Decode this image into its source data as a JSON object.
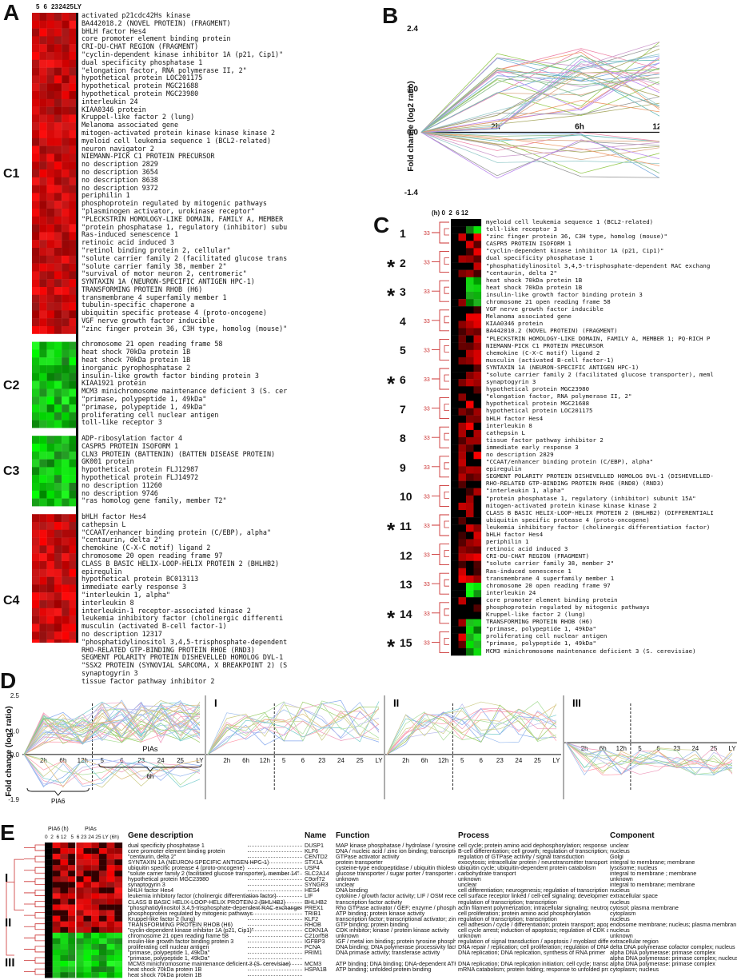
{
  "panels": {
    "a": "A",
    "b": "B",
    "c": "C",
    "d": "D",
    "e": "E"
  },
  "panelA": {
    "time_headers": [
      "5",
      "6",
      "23",
      "24",
      "25",
      "LY"
    ],
    "clusters": [
      {
        "label": "C1",
        "color": "red",
        "genes": [
          "activated p21cdc42Hs kinase",
          "BA442018.2 (NOVEL PROTEIN) (FRAGMENT)",
          "bHLH factor Hes4",
          "core promoter element binding protein",
          "CRI-DU-CHAT REGION (FRAGMENT)",
          "\"cyclin-dependent kinase inhibitor 1A (p21, Cip1)\"",
          "dual specificity phosphatase 1",
          "\"elongation factor, RNA polymerase II, 2\"",
          "hypothetical protein LOC201175",
          "hypothetical protein MGC21688",
          "hypothetical protein MGC23980",
          "interleukin 24",
          "KIAA0346 protein",
          "Kruppel-like factor 2 (lung)",
          "Melanoma associated gene",
          "mitogen-activated protein kinase kinase kinase 2",
          "myeloid cell leukemia sequence 1 (BCL2-related)",
          "neuron navigator 2",
          "NIEMANN-PICK C1 PROTEIN PRECURSOR",
          "no description 2829",
          "no description 3654",
          "no description 8638",
          "no description 9372",
          "periphilin 1",
          "phosphoprotein regulated by mitogenic pathways",
          "\"plasminogen activator, urokinase receptor\"",
          "\"PLECKSTRIN HOMOLOGY-LIKE DOMAIN, FAMILY A, MEMBER",
          "\"protein phosphatase 1, regulatory (inhibitor) subu",
          "Ras-induced senescence 1",
          "retinoic acid induced 3",
          "\"retinol binding protein 2, cellular\"",
          "\"solute carrier family 2 (facilitated glucose trans",
          "\"solute carrier family 38, member 2\"",
          "\"survival of motor neuron 2, centromeric\"",
          "SYNTAXIN 1A (NEURON-SPECIFIC ANTIGEN HPC-1)",
          "TRANSFORMING PROTEIN RHOB (H6)",
          "transmembrane 4 superfamily member 1",
          "tubulin-specific chaperone a",
          "ubiquitin specific protease 4 (proto-oncogene)",
          "VGF nerve growth factor inducible",
          "\"zinc finger protein 36, C3H type, homolog (mouse)\""
        ]
      },
      {
        "label": "C2",
        "color": "green",
        "genes": [
          "chromosome 21 open reading frame 58",
          "heat shock 70kDa protein 1B",
          "heat shock 70kDa protein 1B",
          "inorganic pyrophosphatase 2",
          "insulin-like growth factor binding protein 3",
          "KIAA1921 protein",
          "MCM3 minichromosome maintenance deficient 3 (S. cer",
          "\"primase, polypeptide 1, 49kDa\"",
          "\"primase, polypeptide 1, 49kDa\"",
          "proliferating cell nuclear antigen",
          "toll-like receptor 3"
        ]
      },
      {
        "label": "C3",
        "color": "green",
        "genes": [
          "ADP-ribosylation factor 4",
          "CASPR5 PROTEIN ISOFORM 1",
          "CLN3 PROTEIN (BATTENIN) (BATTEN DISEASE PROTEIN)",
          "GK001 protein",
          "hypothetical protein FLJ12987",
          "hypothetical protein FLJ14972",
          "no description 11260",
          "no description 9746",
          "\"ras homolog gene family, member T2\""
        ]
      },
      {
        "label": "C4",
        "color": "red",
        "genes": [
          "bHLH factor Hes4",
          "cathepsin L",
          "\"CCAAT/enhancer binding protein (C/EBP), alpha\"",
          "\"centaurin, delta 2\"",
          "chemokine (C-X-C motif) ligand 2",
          "chromosome 20 open reading frame 97",
          "CLASS B BASIC HELIX-LOOP-HELIX PROTEIN 2 (BHLHB2)",
          "epiregulin",
          "hypothetical protein BC013113",
          "immediate early response 3",
          "\"interleukin 1, alpha\"",
          "interleukin 8",
          "interleukin-1 receptor-associated kinase 2",
          "leukemia inhibitory factor (cholinergic differenti",
          "musculin (activated B-cell factor-1)",
          "no description 12317",
          "\"phosphatidylinositol 3,4,5-trisphosphate-dependent",
          "RHO-RELATED GTP-BINDING PROTEIN RHOE (RND3)",
          "SEGMENT POLARITY PROTEIN DISHEVELLED HOMOLOG DVL-1",
          "\"SSX2 PROTEIN (SYNOVIAL SARCOMA, X BREAKPOINT 2) (S",
          "synaptogyrin 3",
          "tissue factor pathway inhibitor 2"
        ]
      }
    ]
  },
  "panelB": {
    "ylabel": "Fold change (log2 ratio)",
    "yticks": [
      "2.4",
      "1.0",
      "0.0",
      "-1.4"
    ],
    "xticks": [
      "2h",
      "6h",
      "12h"
    ]
  },
  "panelC": {
    "time_header": "(h) 0  2  6 12",
    "clusters": [
      {
        "num": "1",
        "star": false
      },
      {
        "num": "2",
        "star": true
      },
      {
        "num": "3",
        "star": true
      },
      {
        "num": "4",
        "star": false
      },
      {
        "num": "5",
        "star": false
      },
      {
        "num": "6",
        "star": true
      },
      {
        "num": "7",
        "star": false
      },
      {
        "num": "8",
        "star": false
      },
      {
        "num": "9",
        "star": false
      },
      {
        "num": "10",
        "star": false
      },
      {
        "num": "11",
        "star": true
      },
      {
        "num": "12",
        "star": false
      },
      {
        "num": "13",
        "star": false
      },
      {
        "num": "14",
        "star": true
      },
      {
        "num": "15",
        "star": true
      }
    ],
    "genes": [
      "myeloid cell leukemia sequence 1 (BCL2-related)",
      "toll-like receptor 3",
      "\"zinc finger protein 36, C3H type, homolog (mouse)\"",
      "CASPR5 PROTEIN ISOFORM 1",
      "\"cyclin-dependent kinase inhibitor 1A (p21, Cip1)\"",
      "dual specificity phosphatase 1",
      "\"phosphatidylinositol 3,4,5-trisphosphate-dependent RAC exchang",
      "\"centaurin, delta 2\"",
      "heat shock 70kDa protein 1B",
      "heat shock 70kDa protein 1B",
      "insulin-like growth factor binding protein 3",
      "chromosome 21 open reading frame 58",
      "VGF nerve growth factor inducible",
      "Melanoma associated gene",
      "KIAA0346 protein",
      "BA442010.2 (NOVEL PROTEIN) (FRAGMENT)",
      "\"PLECKSTRIN HOMOLOGY-LIKE DOMAIN, FAMILY A, MEMBER 1; PQ-RICH P",
      "NIEMANN-PICK C1 PROTEIN PRECURSOR",
      "chemokine (C-X-C motif) ligand 2",
      "musculin (activated B-cell factor-1)",
      "SYNTAXIN 1A (NEURON-SPECIFIC ANTIGEN HPC-1)",
      "\"solute carrier family 2 (facilitated glucose transporter), meml",
      "synaptogyrin 3",
      "hypothetical protein MGC23980",
      "\"elongation factor, RNA polymerase II, 2\"",
      "hypothetical protein MGC21688",
      "hypothetical protein LOC201175",
      "bHLH factor Hes4",
      "interleukin 8",
      "cathepsin L",
      "tissue factor pathway inhibitor 2",
      "immediate early response 3",
      "no description 2829",
      "\"CCAAT/enhancer binding protein (C/EBP), alpha\"",
      "epiregulin",
      "SEGMENT POLARITY PROTEIN DISHEVELLED HOMOLOG DVL-1 (DISHEVELLED-",
      "RHO-RELATED GTP-BINDING PROTEIN RHOE (RND8) (RND3)",
      "\"interleukin 1, alpha\"",
      "\"protein phosphatase 1, regulatory (inhibitor) subunit 15A\"",
      "mitogen-activated protein kinase kinase kinase 2",
      "CLASS B BASIC HELIX-LOOP-HELIX PROTEIN 2 (BHLHB2) (DIFFERENTIALI",
      "ubiquitin specific protease 4 (proto-oncogene)",
      "leukemia inhibitory factor (cholinergic differentiation factor)",
      "bHLH factor Hes4",
      "periphilin 1",
      "retinoic acid induced 3",
      "CRI-DU-CHAT REGION (FRAGMENT)",
      "\"solute carrier family 38, member 2\"",
      "Ras-induced senescence 1",
      "transmembrane 4 superfamily member 1",
      "chromosome 20 open reading frame 97",
      "interleukin 24",
      "core promoter element binding protein",
      "phosphoprotein regulated by mitogenic pathways",
      "Kruppel-like factor 2 (lung)",
      "TRANSFORMING PROTEIN RHOB (H6)",
      "\"primase, polypeptide 1, 49kDa\"",
      "proliferating cell nuclear antigen",
      "\"primase, polypeptide 1, 49kDa\"",
      "MCM3 minichromosome maintenance deficient 3 (S. cerevisiae)"
    ]
  },
  "panelD": {
    "ylabel": "Fold change (log2 ratio)",
    "yticks": [
      "2.5",
      "1.0",
      "0.0",
      "-1.9"
    ],
    "xticks": [
      "2h",
      "6h",
      "12h",
      "5",
      "6",
      "23",
      "24",
      "25",
      "LY"
    ],
    "sub": [
      "I",
      "II",
      "III"
    ],
    "pias": "PIAs",
    "pias6h": "6h",
    "pia6": "PIA6"
  },
  "panelE": {
    "pia6_header": "PIA6 (h)",
    "pias_header": "PIAs",
    "time_cols": "0  2  6 12   5  6 23 24 25 LY (6h)",
    "columns": {
      "desc": "Gene description",
      "name": "Name",
      "function": "Function",
      "process": "Process",
      "component": "Component"
    },
    "groups": [
      "I",
      "II",
      "III"
    ],
    "rows": [
      {
        "desc": "dual specificity phosphatase 1",
        "name": "DUSP1",
        "func": "MAP kinase phosphatase / hydrolase / tyrosine phosphatase",
        "proc": "cell cycle; protein amino acid dephosphorylation; response to oxidative stress",
        "comp": "unclear"
      },
      {
        "desc": "core promoter element binding protein",
        "name": "KLF6",
        "func": "DNA / nucleic acid / zinc ion binding; transcriptional activator",
        "proc": "B-cell differentiation; cell growth; regulation of transcription; transcription",
        "comp": "nucleus"
      },
      {
        "desc": "\"centaurin, delta 2\"",
        "name": "CENTD2",
        "func": "GTPase activator activity",
        "proc": "regulation of GTPase activity / signal transduction",
        "comp": "Golgi"
      },
      {
        "desc": "SYNTAXIN 1A (NEURON-SPECIFIC ANTIGEN HPC-1)",
        "name": "STX1A",
        "func": "protein transporter",
        "proc": "exocytosis; intracellular protein / neurotransmitter transport",
        "comp": "integral to membrane; membrane"
      },
      {
        "desc": "ubiquitin specific protease 4 (proto-oncogene)",
        "name": "USP4",
        "func": "cysteine-type endopeptidase / ubiquitin thiolesterase activity",
        "proc": "ubiquitin cycle; ubiquitin-dependent protein catabolism",
        "comp": "lysosome; nucleus"
      },
      {
        "desc": "\"solute carrier family 2 (facilitated glucose transporter), member 14\"",
        "name": "SLC2A14",
        "func": "glucose transporter / sugar porter / transporter activity",
        "proc": "carbohydrate transport",
        "comp": "integral to membrane ; membrane"
      },
      {
        "desc": "hypothetical protein MGC23980",
        "name": "C9orf72",
        "func": "unknown",
        "proc": "unknown",
        "comp": "unknown"
      },
      {
        "desc": "synaptogyrin 3",
        "name": "SYNGR3",
        "func": "unclear",
        "proc": "unclear",
        "comp": "integral to membrane; membrane"
      },
      {
        "desc": "bHLH factor Hes4",
        "name": "HES4",
        "func": "DNA binding",
        "proc": "cell differentiation; neurogenesis; regulation of transcription; transcription",
        "comp": "nucleus"
      },
      {
        "desc": "leukemia inhibitory factor (cholinergic differentiation factor)",
        "name": "LIF",
        "func": "cytokine / growth factor activity; LIF / OSM receptor binding",
        "proc": "cell surface receptor linked / cell-cell signaling; development; immune response",
        "comp": "extracellular space"
      },
      {
        "desc": "CLASS B BASIC HELIX-LOOP-HELIX PROTEIN 2 (BHLHB2)",
        "name": "BHLHB2",
        "func": "transcription factor activity",
        "proc": "regulation of transcription; transcription",
        "comp": "nucleus"
      },
      {
        "desc": "\"phosphatidylinositol 3,4,5-trisphosphate-dependent RAC exchanger 1\"",
        "name": "PREX1",
        "func": "Rho GTPase activator / GEF; enzyme / phospholipid binding",
        "proc": "actin filament polymerization; intracellular signaling; neutrophil activation",
        "comp": "cytosol; plasma membrane"
      },
      {
        "desc": "phosphoprotein regulated by mitogenic pathways",
        "name": "TRIB1",
        "func": "ATP binding; protein kinase activity",
        "proc": "cell proliferation; protein amino acid phosphorylation",
        "comp": "cytoplasm"
      },
      {
        "desc": "Kruppel-like factor 2 (lung)",
        "name": "KLF2",
        "func": "transcription factor; transcriptional activator; zinc ion binding",
        "proc": "regulation of transcription; transcription",
        "comp": "nucleus"
      },
      {
        "desc": "TRANSFORMING PROTEIN RHOB (H6)",
        "name": "RHOB",
        "func": "GTP binding; protein binding",
        "proc": "cell adhesion / cycle / differentiation; protein transport; apoptosis; signaling",
        "comp": "endosome membrane; nucleus; plasma membran"
      },
      {
        "desc": "\"cyclin-dependent kinase inhibitor 1A (p21, Cip1)\"",
        "name": "CDKN1A",
        "func": "CDK inhibitor; kinase / protein kinase activity",
        "proc": "cell cycle arrest; induction of apoptosis; regulation of CDK activity",
        "comp": "nucleus"
      },
      {
        "desc": "chromosome 21 open reading frame 58",
        "name": "C21orf58",
        "func": "unknown",
        "proc": "unknown",
        "comp": "unknown"
      },
      {
        "desc": "insulin-like growth factor binding protein 3",
        "name": "IGFBP3",
        "func": "IGF / metal ion binding; protein tyrosine phosphatase activator",
        "proc": "regulation of signal transduction / apoptosis / myoblast differentiation / cell growth",
        "comp": "extracellular region"
      },
      {
        "desc": "proliferating cell nuclear antigen",
        "name": "PCNA",
        "func": "DNA binding; DNA polymerase processivity factor activity",
        "proc": "DNA repair / replication; cell proliferation; regulation of DNA replication / cell cycle",
        "comp": "delta DNA polymerase cofactor complex; nucleus"
      },
      {
        "desc": "\"primase, polypeptide 1, 49kDa\"",
        "name": "PRIM1",
        "func": "DNA primase activity; transferase activity",
        "proc": "DNA replication; DNA replication, synthesis of RNA primer",
        "comp": "alpha DNA polymerase: primase complex"
      },
      {
        "desc": "\"primase, polypeptide 1, 49kDa\"",
        "name": "",
        "func": "",
        "proc": "",
        "comp": "alpha DNA polymerase: primase complex; nucleus"
      },
      {
        "desc": "MCM3 minichromosome maintenance deficient 3 (S. cerevisiae)",
        "name": "MCM3",
        "func": "ATP binding; DNA binding; DNA-dependent ATPase activity",
        "proc": "DNA replication; DNA replication initiation; cell cycle; transcription & its regulation",
        "comp": "alpha DNA polymerase: primase complex"
      },
      {
        "desc": "heat shock 70kDa protein 1B",
        "name": "HSPA1B",
        "func": "ATP binding; unfolded protein binding",
        "proc": "mRNA catabolism; protein folding; response to unfolded protein",
        "comp": "cytoplasm; nucleus"
      },
      {
        "desc": "heat shock 70kDa protein 1B",
        "name": "",
        "func": "",
        "proc": "",
        "comp": ""
      }
    ]
  }
}
